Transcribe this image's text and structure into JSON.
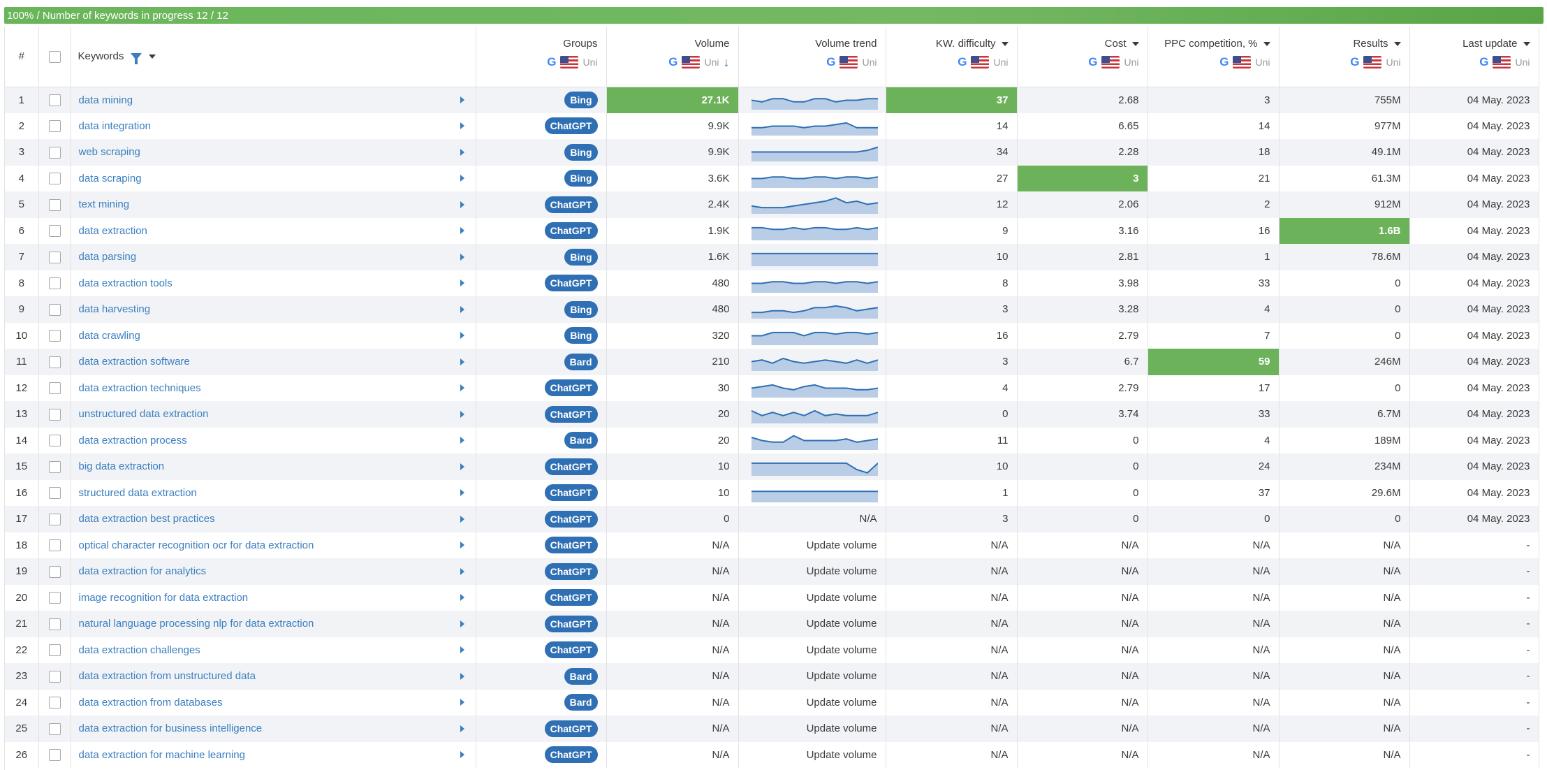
{
  "progress": {
    "text": "100% / Number of keywords in progress 12 / 12",
    "fraction": 1.0
  },
  "headers": {
    "num": "#",
    "keywords": "Keywords",
    "groups": "Groups",
    "volume": "Volume",
    "volume_trend": "Volume trend",
    "kw_difficulty": "KW. difficulty",
    "cost": "Cost",
    "ppc": "PPC competition, %",
    "results": "Results",
    "last_update": "Last update",
    "region": "Uni",
    "search_engine_icon": "G"
  },
  "trend_text": {
    "na": "N/A",
    "update": "Update volume"
  },
  "colors": {
    "accent": "#6cb25a",
    "link": "#3b7fc0",
    "badge": "#2f6fb3"
  },
  "rows": [
    {
      "n": "1",
      "kw": "data mining",
      "group": "Bing",
      "volume": "27.1K",
      "trend": [
        5,
        6,
        4,
        4,
        6,
        6,
        4,
        4,
        6,
        5,
        5,
        4,
        4
      ],
      "kd": "37",
      "cost": "2.68",
      "ppc": "3",
      "results": "755M",
      "date": "04 May. 2023",
      "hl": [
        "volume",
        "kd"
      ]
    },
    {
      "n": "2",
      "kw": "data integration",
      "group": "ChatGPT",
      "volume": "9.9K",
      "trend": [
        6,
        6,
        5,
        5,
        5,
        6,
        5,
        5,
        4,
        3,
        6,
        6,
        6
      ],
      "kd": "14",
      "cost": "6.65",
      "ppc": "14",
      "results": "977M",
      "date": "04 May. 2023",
      "hl": []
    },
    {
      "n": "3",
      "kw": "web scraping",
      "group": "Bing",
      "volume": "9.9K",
      "trend": [
        5,
        5,
        5,
        5,
        5,
        5,
        5,
        5,
        5,
        5,
        5,
        4,
        2
      ],
      "kd": "34",
      "cost": "2.28",
      "ppc": "18",
      "results": "49.1M",
      "date": "04 May. 2023",
      "hl": []
    },
    {
      "n": "4",
      "kw": "data scraping",
      "group": "Bing",
      "volume": "3.6K",
      "trend": [
        5,
        5,
        4,
        4,
        5,
        5,
        4,
        4,
        5,
        4,
        4,
        5,
        4
      ],
      "kd": "27",
      "cost": "3",
      "ppc": "21",
      "results": "61.3M",
      "date": "04 May. 2023",
      "hl": [
        "cost"
      ]
    },
    {
      "n": "5",
      "kw": "text mining",
      "group": "ChatGPT",
      "volume": "2.4K",
      "trend": [
        6,
        7,
        7,
        7,
        6,
        5,
        4,
        3,
        1,
        4,
        3,
        5,
        4
      ],
      "kd": "12",
      "cost": "2.06",
      "ppc": "2",
      "results": "912M",
      "date": "04 May. 2023",
      "hl": []
    },
    {
      "n": "6",
      "kw": "data extraction",
      "group": "ChatGPT",
      "volume": "1.9K",
      "trend": [
        3,
        3,
        4,
        4,
        3,
        4,
        3,
        3,
        4,
        4,
        3,
        4,
        3
      ],
      "kd": "9",
      "cost": "3.16",
      "ppc": "16",
      "results": "1.6B",
      "date": "04 May. 2023",
      "hl": [
        "results"
      ]
    },
    {
      "n": "7",
      "kw": "data parsing",
      "group": "Bing",
      "volume": "1.6K",
      "trend": [
        3,
        3,
        3,
        3,
        3,
        3,
        3,
        3,
        3,
        3,
        3,
        3,
        3
      ],
      "kd": "10",
      "cost": "2.81",
      "ppc": "1",
      "results": "78.6M",
      "date": "04 May. 2023",
      "hl": []
    },
    {
      "n": "8",
      "kw": "data extraction tools",
      "group": "ChatGPT",
      "volume": "480",
      "trend": [
        5,
        5,
        4,
        4,
        5,
        5,
        4,
        4,
        5,
        4,
        4,
        5,
        4
      ],
      "kd": "8",
      "cost": "3.98",
      "ppc": "33",
      "results": "0",
      "date": "04 May. 2023",
      "hl": []
    },
    {
      "n": "9",
      "kw": "data harvesting",
      "group": "Bing",
      "volume": "480",
      "trend": [
        7,
        7,
        6,
        6,
        7,
        6,
        4,
        4,
        3,
        4,
        6,
        5,
        4
      ],
      "kd": "3",
      "cost": "3.28",
      "ppc": "4",
      "results": "0",
      "date": "04 May. 2023",
      "hl": []
    },
    {
      "n": "10",
      "kw": "data crawling",
      "group": "Bing",
      "volume": "320",
      "trend": [
        5,
        5,
        3,
        3,
        3,
        5,
        3,
        3,
        4,
        3,
        3,
        4,
        3
      ],
      "kd": "16",
      "cost": "2.79",
      "ppc": "7",
      "results": "0",
      "date": "04 May. 2023",
      "hl": []
    },
    {
      "n": "11",
      "kw": "data extraction software",
      "group": "Bard",
      "volume": "210",
      "trend": [
        5,
        4,
        6,
        3,
        5,
        6,
        5,
        4,
        5,
        6,
        4,
        6,
        4
      ],
      "kd": "3",
      "cost": "6.7",
      "ppc": "59",
      "results": "246M",
      "date": "04 May. 2023",
      "hl": [
        "ppc"
      ]
    },
    {
      "n": "12",
      "kw": "data extraction techniques",
      "group": "ChatGPT",
      "volume": "30",
      "trend": [
        5,
        4,
        3,
        5,
        6,
        4,
        3,
        5,
        5,
        5,
        6,
        6,
        5
      ],
      "kd": "4",
      "cost": "2.79",
      "ppc": "17",
      "results": "0",
      "date": "04 May. 2023",
      "hl": []
    },
    {
      "n": "13",
      "kw": "unstructured data extraction",
      "group": "ChatGPT",
      "volume": "20",
      "trend": [
        3,
        6,
        4,
        6,
        4,
        6,
        3,
        6,
        5,
        6,
        6,
        6,
        4
      ],
      "kd": "0",
      "cost": "3.74",
      "ppc": "33",
      "results": "6.7M",
      "date": "04 May. 2023",
      "hl": []
    },
    {
      "n": "14",
      "kw": "data extraction process",
      "group": "Bard",
      "volume": "20",
      "trend": [
        3,
        5,
        6,
        6,
        2,
        5,
        5,
        5,
        5,
        4,
        6,
        5,
        4
      ],
      "kd": "11",
      "cost": "0",
      "ppc": "4",
      "results": "189M",
      "date": "04 May. 2023",
      "hl": []
    },
    {
      "n": "15",
      "kw": "big data extraction",
      "group": "ChatGPT",
      "volume": "10",
      "trend": [
        3,
        3,
        3,
        3,
        3,
        3,
        3,
        3,
        3,
        3,
        7,
        9,
        3
      ],
      "kd": "10",
      "cost": "0",
      "ppc": "24",
      "results": "234M",
      "date": "04 May. 2023",
      "hl": []
    },
    {
      "n": "16",
      "kw": "structured data extraction",
      "group": "ChatGPT",
      "volume": "10",
      "trend": [
        4,
        4,
        4,
        4,
        4,
        4,
        4,
        4,
        4,
        4,
        4,
        4,
        4
      ],
      "kd": "1",
      "cost": "0",
      "ppc": "37",
      "results": "29.6M",
      "date": "04 May. 2023",
      "hl": []
    },
    {
      "n": "17",
      "kw": "data extraction best practices",
      "group": "ChatGPT",
      "volume": "0",
      "trend": "na",
      "kd": "3",
      "cost": "0",
      "ppc": "0",
      "results": "0",
      "date": "04 May. 2023",
      "hl": []
    },
    {
      "n": "18",
      "kw": "optical character recognition ocr for data extraction",
      "group": "ChatGPT",
      "volume": "N/A",
      "trend": "update",
      "kd": "N/A",
      "cost": "N/A",
      "ppc": "N/A",
      "results": "N/A",
      "date": "-",
      "hl": []
    },
    {
      "n": "19",
      "kw": "data extraction for analytics",
      "group": "ChatGPT",
      "volume": "N/A",
      "trend": "update",
      "kd": "N/A",
      "cost": "N/A",
      "ppc": "N/A",
      "results": "N/A",
      "date": "-",
      "hl": []
    },
    {
      "n": "20",
      "kw": "image recognition for data extraction",
      "group": "ChatGPT",
      "volume": "N/A",
      "trend": "update",
      "kd": "N/A",
      "cost": "N/A",
      "ppc": "N/A",
      "results": "N/A",
      "date": "-",
      "hl": []
    },
    {
      "n": "21",
      "kw": "natural language processing nlp for data extraction",
      "group": "ChatGPT",
      "volume": "N/A",
      "trend": "update",
      "kd": "N/A",
      "cost": "N/A",
      "ppc": "N/A",
      "results": "N/A",
      "date": "-",
      "hl": []
    },
    {
      "n": "22",
      "kw": "data extraction challenges",
      "group": "ChatGPT",
      "volume": "N/A",
      "trend": "update",
      "kd": "N/A",
      "cost": "N/A",
      "ppc": "N/A",
      "results": "N/A",
      "date": "-",
      "hl": []
    },
    {
      "n": "23",
      "kw": "data extraction from unstructured data",
      "group": "Bard",
      "volume": "N/A",
      "trend": "update",
      "kd": "N/A",
      "cost": "N/A",
      "ppc": "N/A",
      "results": "N/A",
      "date": "-",
      "hl": []
    },
    {
      "n": "24",
      "kw": "data extraction from databases",
      "group": "Bard",
      "volume": "N/A",
      "trend": "update",
      "kd": "N/A",
      "cost": "N/A",
      "ppc": "N/A",
      "results": "N/A",
      "date": "-",
      "hl": []
    },
    {
      "n": "25",
      "kw": "data extraction for business intelligence",
      "group": "ChatGPT",
      "volume": "N/A",
      "trend": "update",
      "kd": "N/A",
      "cost": "N/A",
      "ppc": "N/A",
      "results": "N/A",
      "date": "-",
      "hl": []
    },
    {
      "n": "26",
      "kw": "data extraction for machine learning",
      "group": "ChatGPT",
      "volume": "N/A",
      "trend": "update",
      "kd": "N/A",
      "cost": "N/A",
      "ppc": "N/A",
      "results": "N/A",
      "date": "-",
      "hl": []
    }
  ]
}
